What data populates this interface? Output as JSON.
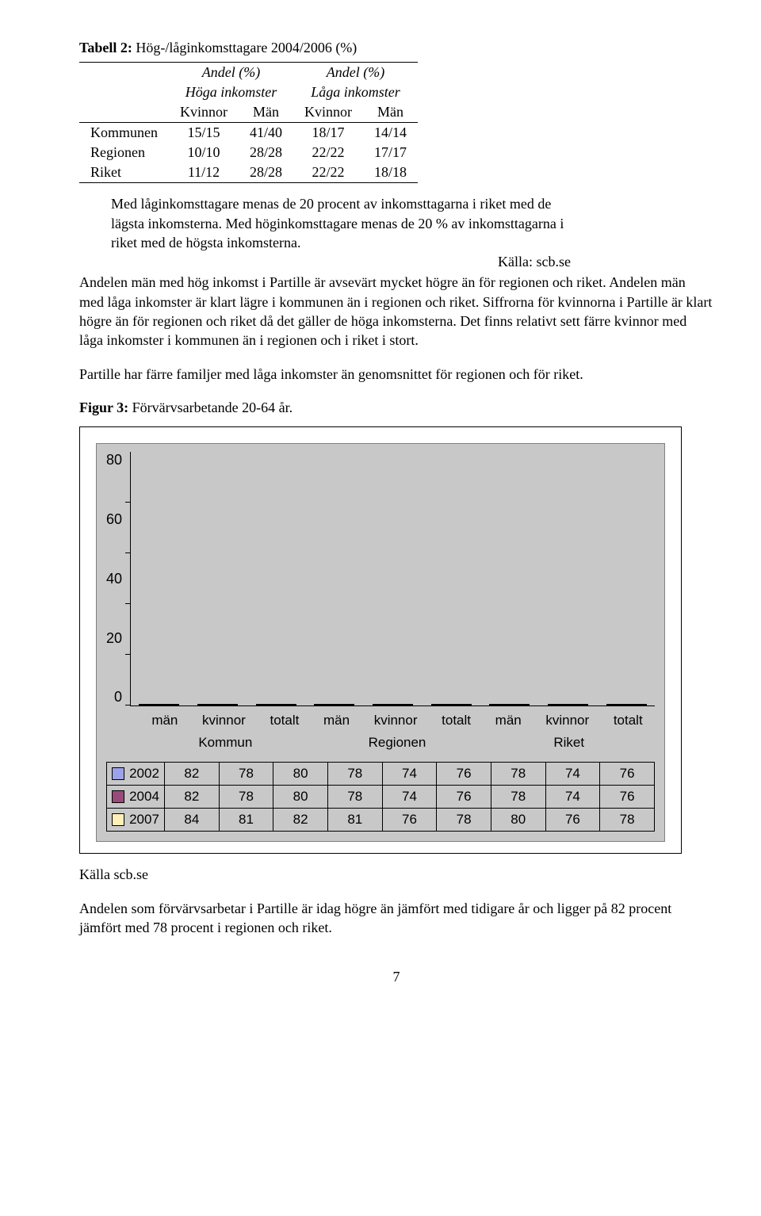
{
  "table2": {
    "caption_bold": "Tabell 2:",
    "caption_rest": " Hög-/låginkomsttagare 2004/2006 (%)",
    "hdr_andel": "Andel (%)",
    "hdr_hoga": "Höga inkomster",
    "hdr_laga": "Låga inkomster",
    "hdr_kvinnor": "Kvinnor",
    "hdr_man": "Män",
    "rows": [
      {
        "label": "Kommunen",
        "v": [
          "15/15",
          "41/40",
          "18/17",
          "14/14"
        ]
      },
      {
        "label": "Regionen",
        "v": [
          "10/10",
          "28/28",
          "22/22",
          "17/17"
        ]
      },
      {
        "label": "Riket",
        "v": [
          "11/12",
          "28/28",
          "22/22",
          "18/18"
        ]
      }
    ]
  },
  "note_text": "Med låginkomsttagare menas de 20 procent av inkomsttagarna i riket med de lägsta inkomsterna. Med höginkomsttagare menas de 20 % av inkomsttagarna i riket med de högsta inkomsterna.",
  "source": "Källa: scb.se",
  "para1": "Andelen män med hög inkomst i Partille är avsevärt mycket högre än för regionen och riket. Andelen män med låga inkomster är klart lägre i kommunen än i regionen och riket. Siffrorna för kvinnorna i Partille är klart högre än för regionen och riket då det gäller de höga inkomsterna. Det finns relativt sett färre kvinnor med låga inkomster i kommunen än i regionen och i riket i stort.",
  "para2": "Partille har färre familjer med låga inkomster än genomsnittet för regionen och för riket.",
  "fig_caption_bold": "Figur 3:",
  "fig_caption_rest": " Förvärvsarbetande 20-64 år.",
  "chart": {
    "ymax": 100,
    "yticks": [
      80,
      60,
      40,
      20,
      0
    ],
    "groups": [
      "Kommun",
      "Regionen",
      "Riket"
    ],
    "cats": [
      "män",
      "kvinnor",
      "totalt"
    ],
    "years": [
      "2002",
      "2004",
      "2007"
    ],
    "colors": {
      "2002": "#9ca2e8",
      "2004": "#9a4a7a",
      "2007": "#fff0b8"
    },
    "background": "#c8c8c8",
    "grid": "#000000",
    "data": {
      "2002": [
        82,
        78,
        80,
        78,
        74,
        76,
        78,
        74,
        76
      ],
      "2004": [
        82,
        78,
        80,
        78,
        74,
        76,
        78,
        74,
        76
      ],
      "2007": [
        84,
        81,
        82,
        81,
        76,
        78,
        80,
        76,
        78
      ]
    }
  },
  "source2": "Källa scb.se",
  "para3": "Andelen som förvärvsarbetar i Partille är idag högre än jämfört med tidigare år och ligger på 82 procent jämfört med 78 procent i regionen och riket.",
  "pagenum": "7"
}
